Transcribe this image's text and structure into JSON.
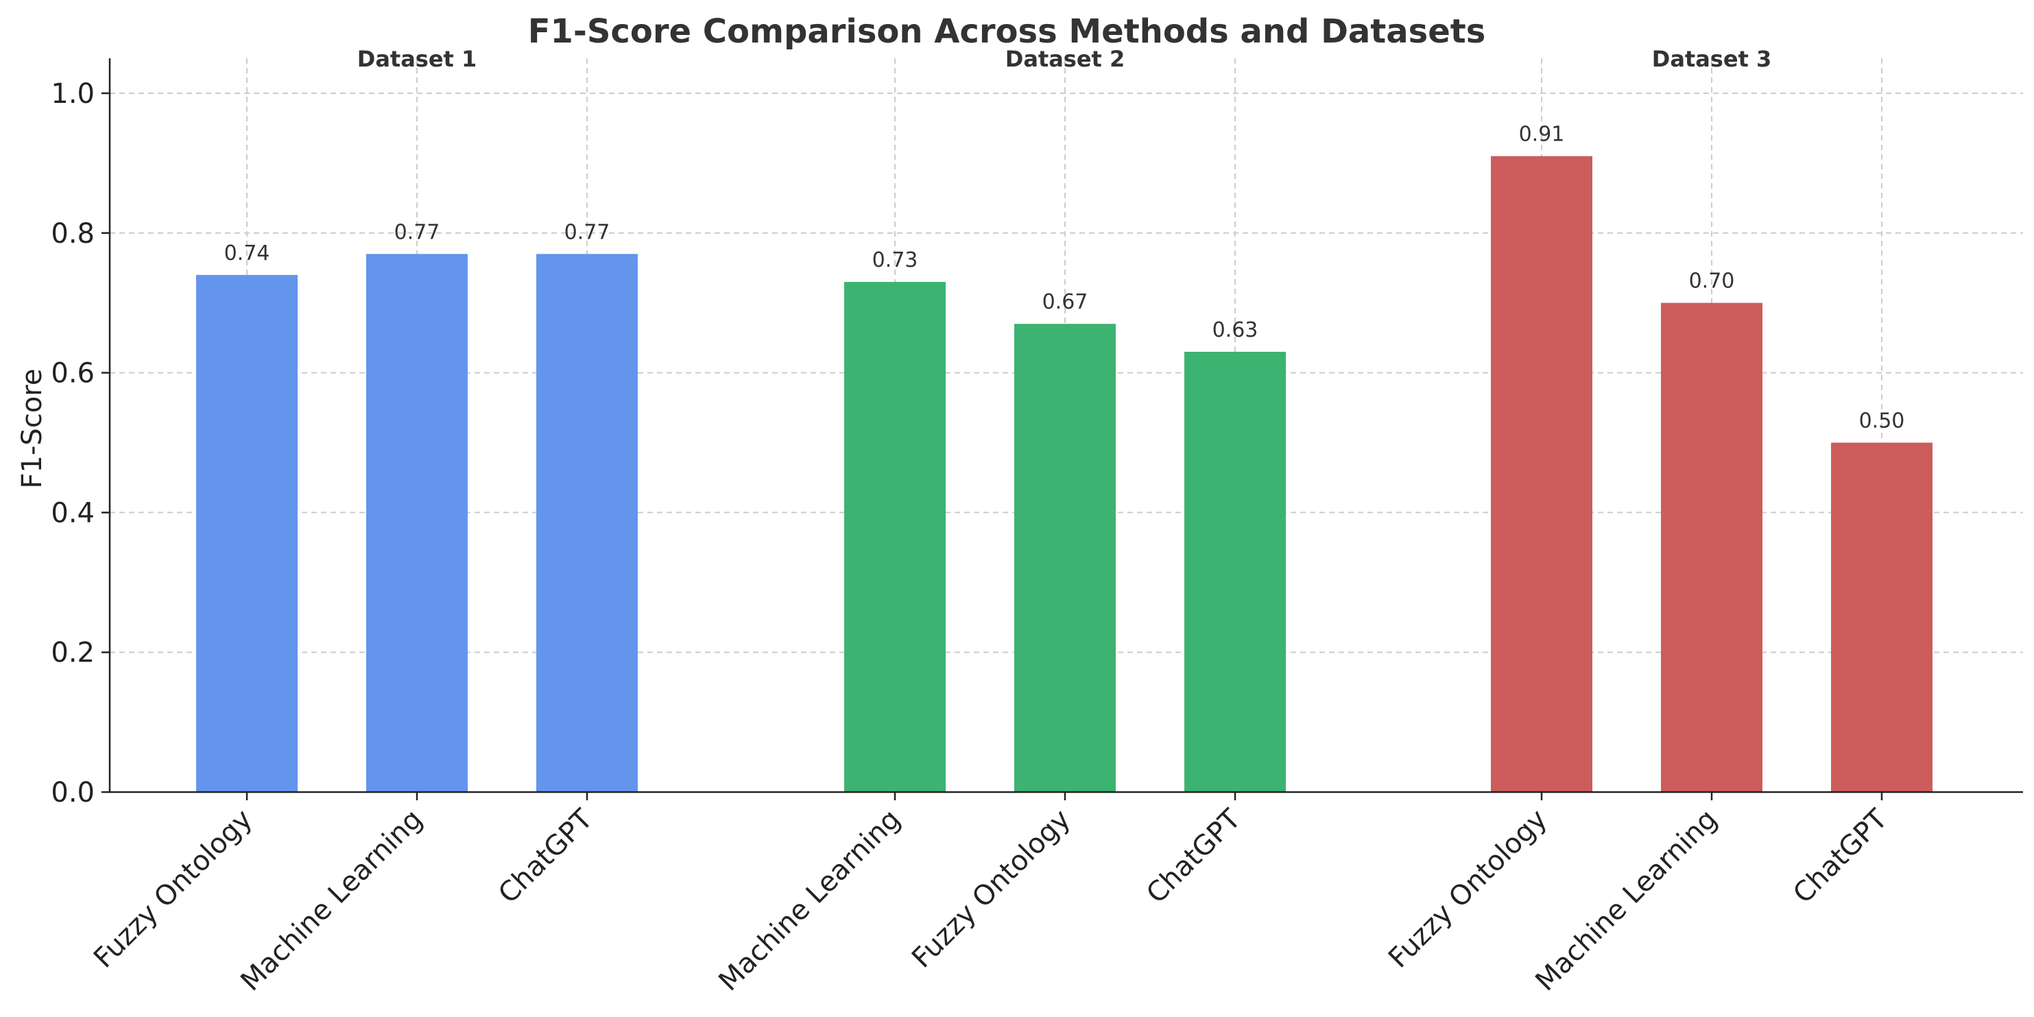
{
  "chart_data": {
    "type": "bar",
    "title": "F1-Score Comparison Across Methods and Datasets",
    "ylabel": "F1-Score",
    "xlabel": "",
    "ylim": [
      0,
      1.05
    ],
    "yticks": [
      "0.0",
      "0.2",
      "0.4",
      "0.6",
      "0.8",
      "1.0"
    ],
    "grid": true,
    "groups": [
      {
        "name": "Dataset 1",
        "color": "#6495ED",
        "categories": [
          "Fuzzy Ontology",
          "Machine Learning",
          "ChatGPT"
        ],
        "values": [
          0.74,
          0.77,
          0.77
        ],
        "labels": [
          "0.74",
          "0.77",
          "0.77"
        ]
      },
      {
        "name": "Dataset 2",
        "color": "#3CB371",
        "categories": [
          "Machine Learning",
          "Fuzzy Ontology",
          "ChatGPT"
        ],
        "values": [
          0.73,
          0.67,
          0.63
        ],
        "labels": [
          "0.73",
          "0.67",
          "0.63"
        ]
      },
      {
        "name": "Dataset 3",
        "color": "#CD5C5C",
        "categories": [
          "Fuzzy Ontology",
          "Machine Learning",
          "ChatGPT"
        ],
        "values": [
          0.91,
          0.7,
          0.5
        ],
        "labels": [
          "0.91",
          "0.70",
          "0.50"
        ]
      }
    ]
  }
}
